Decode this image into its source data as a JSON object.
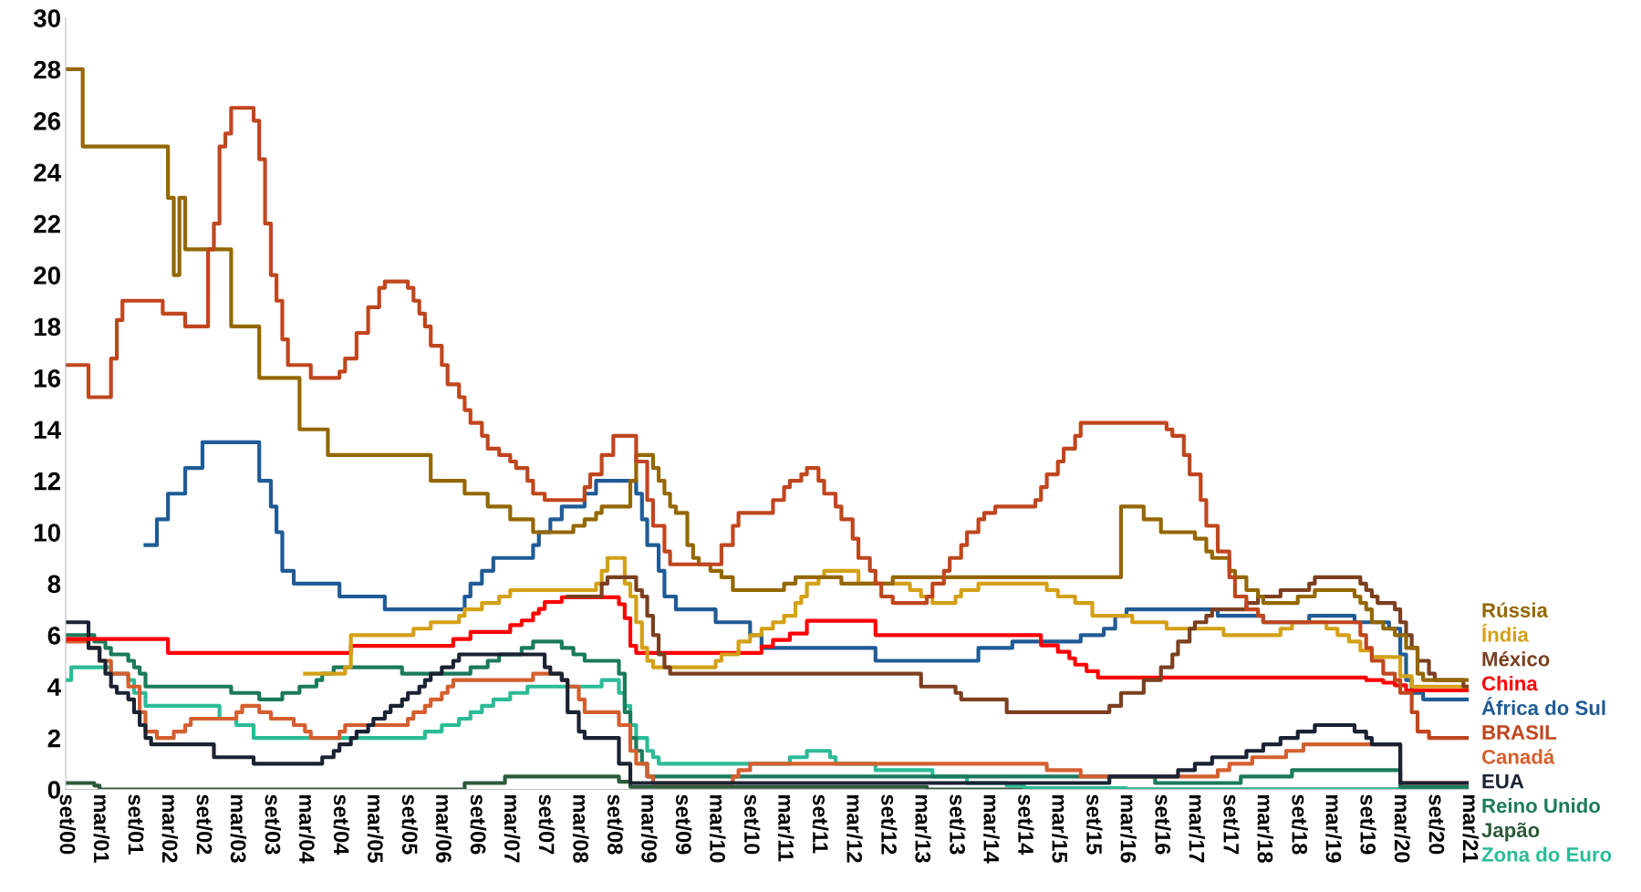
{
  "chart_data": {
    "type": "step",
    "xlim": [
      "2000-09",
      "2021-03"
    ],
    "ylim": [
      0,
      30
    ],
    "yticks": [
      0,
      2,
      4,
      6,
      8,
      10,
      12,
      14,
      16,
      18,
      20,
      22,
      24,
      26,
      28,
      30
    ],
    "xticks": [
      {
        "value": "2000-09",
        "label": "set/00"
      },
      {
        "value": "2001-03",
        "label": "mar/01"
      },
      {
        "value": "2001-09",
        "label": "set/01"
      },
      {
        "value": "2002-03",
        "label": "mar/02"
      },
      {
        "value": "2002-09",
        "label": "set/02"
      },
      {
        "value": "2003-03",
        "label": "mar/03"
      },
      {
        "value": "2003-09",
        "label": "set/03"
      },
      {
        "value": "2004-03",
        "label": "mar/04"
      },
      {
        "value": "2004-09",
        "label": "set/04"
      },
      {
        "value": "2005-03",
        "label": "mar/05"
      },
      {
        "value": "2005-09",
        "label": "set/05"
      },
      {
        "value": "2006-03",
        "label": "mar/06"
      },
      {
        "value": "2006-09",
        "label": "set/06"
      },
      {
        "value": "2007-03",
        "label": "mar/07"
      },
      {
        "value": "2007-09",
        "label": "set/07"
      },
      {
        "value": "2008-03",
        "label": "mar/08"
      },
      {
        "value": "2008-09",
        "label": "set/08"
      },
      {
        "value": "2009-03",
        "label": "mar/09"
      },
      {
        "value": "2009-09",
        "label": "set/09"
      },
      {
        "value": "2010-03",
        "label": "mar/10"
      },
      {
        "value": "2010-09",
        "label": "set/10"
      },
      {
        "value": "2011-03",
        "label": "mar/11"
      },
      {
        "value": "2011-09",
        "label": "set/11"
      },
      {
        "value": "2012-03",
        "label": "mar/12"
      },
      {
        "value": "2012-09",
        "label": "set/12"
      },
      {
        "value": "2013-03",
        "label": "mar/13"
      },
      {
        "value": "2013-09",
        "label": "set/13"
      },
      {
        "value": "2014-03",
        "label": "mar/14"
      },
      {
        "value": "2014-09",
        "label": "set/14"
      },
      {
        "value": "2015-03",
        "label": "mar/15"
      },
      {
        "value": "2015-09",
        "label": "set/15"
      },
      {
        "value": "2016-03",
        "label": "mar/16"
      },
      {
        "value": "2016-09",
        "label": "set/16"
      },
      {
        "value": "2017-03",
        "label": "mar/17"
      },
      {
        "value": "2017-09",
        "label": "set/17"
      },
      {
        "value": "2018-03",
        "label": "mar/18"
      },
      {
        "value": "2018-09",
        "label": "set/18"
      },
      {
        "value": "2019-03",
        "label": "mar/19"
      },
      {
        "value": "2019-09",
        "label": "set/19"
      },
      {
        "value": "2020-03",
        "label": "mar/20"
      },
      {
        "value": "2020-09",
        "label": "set/20"
      },
      {
        "value": "2021-03",
        "label": "mar/21"
      }
    ],
    "series": [
      {
        "name": "Japão",
        "color": "#2d5a3a",
        "x": [
          "2000-09",
          "2001-02",
          "2001-03",
          "2006-07",
          "2007-02",
          "2008-10",
          "2008-12",
          "2013-04",
          "2021-03"
        ],
        "values": [
          0.25,
          0.15,
          0,
          0.25,
          0.5,
          0.3,
          0.1,
          0,
          0
        ]
      },
      {
        "name": "Zona do Euro",
        "color": "#2bbb97",
        "x": [
          "2000-09",
          "2000-10",
          "2001-05",
          "2001-08",
          "2001-09",
          "2001-11",
          "2002-12",
          "2003-03",
          "2003-06",
          "2005-12",
          "2006-03",
          "2006-06",
          "2006-08",
          "2006-10",
          "2006-12",
          "2007-03",
          "2007-06",
          "2008-07",
          "2008-10",
          "2008-11",
          "2008-12",
          "2009-01",
          "2009-03",
          "2009-04",
          "2009-05",
          "2011-04",
          "2011-07",
          "2011-11",
          "2011-12",
          "2012-07",
          "2013-05",
          "2013-11",
          "2014-06",
          "2014-09",
          "2016-03",
          "2021-03"
        ],
        "values": [
          4.25,
          4.75,
          4.5,
          4.25,
          3.75,
          3.25,
          2.75,
          2.5,
          2.0,
          2.25,
          2.5,
          2.75,
          3.0,
          3.25,
          3.5,
          3.75,
          4.0,
          4.25,
          3.75,
          3.25,
          2.5,
          2.0,
          1.5,
          1.25,
          1.0,
          1.25,
          1.5,
          1.25,
          1.0,
          0.75,
          0.5,
          0.25,
          0.15,
          0.05,
          0,
          0
        ]
      },
      {
        "name": "Reino Unido",
        "color": "#1b7a5c",
        "x": [
          "2000-09",
          "2001-02",
          "2001-04",
          "2001-05",
          "2001-08",
          "2001-09",
          "2001-10",
          "2001-11",
          "2003-02",
          "2003-07",
          "2003-11",
          "2004-02",
          "2004-05",
          "2004-06",
          "2004-08",
          "2005-08",
          "2006-08",
          "2006-11",
          "2007-01",
          "2007-05",
          "2007-07",
          "2007-12",
          "2008-02",
          "2008-04",
          "2008-10",
          "2008-11",
          "2008-12",
          "2009-01",
          "2009-02",
          "2009-03",
          "2016-08",
          "2017-11",
          "2018-08",
          "2020-03",
          "2021-03"
        ],
        "values": [
          6.0,
          5.75,
          5.5,
          5.25,
          5.0,
          4.75,
          4.5,
          4.0,
          3.75,
          3.5,
          3.75,
          4.0,
          4.25,
          4.5,
          4.75,
          4.5,
          4.75,
          5.0,
          5.25,
          5.5,
          5.75,
          5.5,
          5.25,
          5.0,
          4.5,
          3.0,
          2.0,
          1.5,
          1.0,
          0.5,
          0.25,
          0.5,
          0.75,
          0.1,
          0.1
        ]
      },
      {
        "name": "Canadá",
        "color": "#d45f2e",
        "x": [
          "2000-09",
          "2001-01",
          "2001-03",
          "2001-05",
          "2001-08",
          "2001-10",
          "2001-11",
          "2002-01",
          "2002-04",
          "2002-06",
          "2002-07",
          "2003-03",
          "2003-04",
          "2003-07",
          "2003-09",
          "2004-01",
          "2004-03",
          "2004-04",
          "2004-09",
          "2004-10",
          "2005-09",
          "2005-10",
          "2005-12",
          "2006-01",
          "2006-03",
          "2006-04",
          "2006-05",
          "2007-07",
          "2007-12",
          "2008-01",
          "2008-03",
          "2008-04",
          "2008-10",
          "2008-12",
          "2009-01",
          "2009-03",
          "2009-04",
          "2010-06",
          "2010-07",
          "2010-09",
          "2015-01",
          "2015-07",
          "2017-07",
          "2017-09",
          "2018-01",
          "2018-07",
          "2018-10",
          "2020-03",
          "2021-03"
        ],
        "values": [
          5.75,
          5.5,
          5.0,
          4.5,
          4.0,
          3.0,
          2.25,
          2.0,
          2.25,
          2.5,
          2.75,
          3.0,
          3.25,
          3.0,
          2.75,
          2.5,
          2.25,
          2.0,
          2.25,
          2.5,
          2.75,
          3.0,
          3.25,
          3.5,
          3.75,
          4.0,
          4.25,
          4.5,
          4.25,
          4.0,
          3.5,
          3.0,
          2.5,
          1.5,
          1.0,
          0.5,
          0.25,
          0.5,
          0.75,
          1.0,
          0.75,
          0.5,
          0.75,
          1.0,
          1.25,
          1.5,
          1.75,
          0.25,
          0.25
        ]
      },
      {
        "name": "EUA",
        "color": "#1a2233",
        "x": [
          "2000-09",
          "2001-01",
          "2001-03",
          "2001-04",
          "2001-05",
          "2001-06",
          "2001-08",
          "2001-09",
          "2001-10",
          "2001-11",
          "2001-12",
          "2002-11",
          "2003-06",
          "2004-06",
          "2004-08",
          "2004-09",
          "2004-11",
          "2004-12",
          "2005-02",
          "2005-03",
          "2005-05",
          "2005-06",
          "2005-08",
          "2005-09",
          "2005-11",
          "2005-12",
          "2006-01",
          "2006-03",
          "2006-05",
          "2006-06",
          "2007-09",
          "2007-10",
          "2007-12",
          "2008-01",
          "2008-03",
          "2008-04",
          "2008-10",
          "2008-12",
          "2015-12",
          "2016-12",
          "2017-03",
          "2017-06",
          "2017-12",
          "2018-03",
          "2018-06",
          "2018-09",
          "2018-12",
          "2019-07",
          "2019-09",
          "2019-10",
          "2020-03",
          "2021-03"
        ],
        "values": [
          6.5,
          5.5,
          5.0,
          4.5,
          4.0,
          3.75,
          3.5,
          3.0,
          2.5,
          2.0,
          1.75,
          1.25,
          1.0,
          1.25,
          1.5,
          1.75,
          2.0,
          2.25,
          2.5,
          2.75,
          3.0,
          3.25,
          3.5,
          3.75,
          4.0,
          4.25,
          4.5,
          4.75,
          5.0,
          5.25,
          4.75,
          4.5,
          4.25,
          3.0,
          2.25,
          2.0,
          1.0,
          0.25,
          0.5,
          0.75,
          1.0,
          1.25,
          1.5,
          1.75,
          2.0,
          2.25,
          2.5,
          2.25,
          2.0,
          1.75,
          0.25,
          0.25
        ]
      },
      {
        "name": "África do Sul",
        "color": "#1f5b96",
        "x": [
          "2001-11",
          "2002-01",
          "2002-03",
          "2002-06",
          "2002-09",
          "2003-07",
          "2003-09",
          "2003-10",
          "2003-11",
          "2004-01",
          "2004-09",
          "2005-05",
          "2006-07",
          "2006-08",
          "2006-10",
          "2006-12",
          "2007-07",
          "2007-08",
          "2007-10",
          "2007-12",
          "2008-04",
          "2008-06",
          "2009-01",
          "2009-02",
          "2009-03",
          "2009-05",
          "2009-06",
          "2009-08",
          "2010-03",
          "2010-09",
          "2010-11",
          "2012-07",
          "2014-01",
          "2014-07",
          "2015-07",
          "2015-11",
          "2016-01",
          "2016-03",
          "2017-07",
          "2018-03",
          "2018-11",
          "2019-07",
          "2020-01",
          "2020-03",
          "2020-04",
          "2020-05",
          "2020-07",
          "2021-03"
        ],
        "values": [
          9.5,
          10.5,
          11.5,
          12.5,
          13.5,
          12.0,
          11.0,
          10.0,
          8.5,
          8.0,
          7.5,
          7.0,
          7.5,
          8.0,
          8.5,
          9.0,
          9.5,
          10.0,
          10.5,
          11.0,
          11.5,
          12.0,
          11.5,
          10.5,
          9.5,
          8.5,
          7.5,
          7.0,
          6.5,
          6.0,
          5.5,
          5.0,
          5.5,
          5.75,
          6.0,
          6.25,
          6.75,
          7.0,
          6.75,
          6.5,
          6.75,
          6.5,
          6.25,
          5.25,
          4.25,
          3.75,
          3.5,
          3.5
        ]
      },
      {
        "name": "China",
        "color": "#ff0000",
        "x": [
          "2000-09",
          "2002-03",
          "2004-11",
          "2006-05",
          "2006-08",
          "2007-03",
          "2007-05",
          "2007-07",
          "2007-08",
          "2007-09",
          "2007-12",
          "2008-10",
          "2008-11",
          "2008-12",
          "2009-01",
          "2010-11",
          "2011-01",
          "2011-04",
          "2011-07",
          "2012-07",
          "2014-12",
          "2015-03",
          "2015-05",
          "2015-06",
          "2015-08",
          "2015-10",
          "2019-09",
          "2019-12",
          "2020-02",
          "2020-04",
          "2021-03"
        ],
        "values": [
          5.85,
          5.31,
          5.58,
          5.85,
          6.12,
          6.39,
          6.57,
          6.84,
          7.02,
          7.29,
          7.47,
          7.2,
          6.66,
          5.58,
          5.31,
          5.56,
          5.81,
          6.06,
          6.56,
          6.0,
          5.6,
          5.35,
          5.1,
          4.85,
          4.6,
          4.35,
          4.25,
          4.15,
          4.05,
          3.85,
          3.85
        ]
      },
      {
        "name": "Índia",
        "color": "#d4a017",
        "x": [
          "2004-03",
          "2004-10",
          "2004-11",
          "2005-10",
          "2006-01",
          "2006-06",
          "2006-07",
          "2006-10",
          "2007-01",
          "2007-03",
          "2008-06",
          "2008-07",
          "2008-08",
          "2008-11",
          "2008-12",
          "2009-01",
          "2009-02",
          "2009-03",
          "2009-04",
          "2010-03",
          "2010-04",
          "2010-07",
          "2010-09",
          "2010-11",
          "2011-01",
          "2011-03",
          "2011-05",
          "2011-06",
          "2011-07",
          "2011-09",
          "2011-10",
          "2012-04",
          "2013-01",
          "2013-03",
          "2013-05",
          "2013-09",
          "2013-10",
          "2014-01",
          "2015-01",
          "2015-03",
          "2015-06",
          "2015-09",
          "2016-04",
          "2016-10",
          "2017-08",
          "2018-06",
          "2018-08",
          "2019-02",
          "2019-04",
          "2019-06",
          "2019-08",
          "2019-10",
          "2020-03",
          "2020-05",
          "2021-03"
        ],
        "values": [
          4.5,
          4.75,
          6.0,
          6.25,
          6.5,
          6.75,
          7.0,
          7.25,
          7.5,
          7.75,
          8.0,
          8.5,
          9.0,
          8.0,
          7.5,
          6.5,
          5.5,
          5.0,
          4.75,
          5.0,
          5.25,
          5.75,
          6.0,
          6.25,
          6.5,
          6.75,
          7.25,
          7.5,
          8.0,
          8.25,
          8.5,
          8.0,
          7.75,
          7.5,
          7.25,
          7.5,
          7.75,
          8.0,
          7.75,
          7.5,
          7.25,
          6.75,
          6.5,
          6.25,
          6.0,
          6.25,
          6.5,
          6.25,
          6.0,
          5.75,
          5.4,
          5.15,
          4.4,
          4.0,
          4.0
        ]
      },
      {
        "name": "México",
        "color": "#7b3f1f",
        "x": [
          "2008-01",
          "2008-07",
          "2008-08",
          "2009-01",
          "2009-02",
          "2009-03",
          "2009-04",
          "2009-05",
          "2009-06",
          "2009-07",
          "2013-03",
          "2013-09",
          "2013-10",
          "2014-06",
          "2015-12",
          "2016-02",
          "2016-06",
          "2016-09",
          "2016-11",
          "2016-12",
          "2017-02",
          "2017-03",
          "2017-05",
          "2017-06",
          "2017-12",
          "2018-02",
          "2018-06",
          "2018-11",
          "2018-12",
          "2019-08",
          "2019-09",
          "2019-10",
          "2019-11",
          "2020-02",
          "2020-03",
          "2020-04",
          "2020-05",
          "2020-06",
          "2020-08",
          "2020-09",
          "2021-02",
          "2021-03"
        ],
        "values": [
          7.5,
          8.0,
          8.25,
          7.75,
          7.5,
          6.75,
          6.0,
          5.25,
          4.75,
          4.5,
          4.0,
          3.75,
          3.5,
          3.0,
          3.25,
          3.75,
          4.25,
          4.75,
          5.25,
          5.75,
          6.25,
          6.5,
          6.75,
          7.0,
          7.25,
          7.5,
          7.75,
          8.0,
          8.25,
          8.0,
          7.75,
          7.5,
          7.25,
          7.0,
          6.5,
          6.0,
          5.5,
          5.0,
          4.5,
          4.25,
          4.0,
          4.0
        ]
      },
      {
        "name": "Rússia",
        "color": "#946700",
        "x": [
          "2000-09",
          "2000-12",
          "2002-03",
          "2002-04",
          "2002-05",
          "2002-06",
          "2003-02",
          "2003-07",
          "2004-02",
          "2004-07",
          "2006-01",
          "2006-07",
          "2006-11",
          "2007-03",
          "2007-07",
          "2008-02",
          "2008-04",
          "2008-06",
          "2008-07",
          "2008-12",
          "2009-01",
          "2009-04",
          "2009-05",
          "2009-06",
          "2009-07",
          "2009-08",
          "2009-10",
          "2009-11",
          "2009-12",
          "2010-02",
          "2010-04",
          "2010-06",
          "2011-03",
          "2011-05",
          "2012-01",
          "2012-10",
          "2016-02",
          "2016-06",
          "2016-09",
          "2017-03",
          "2017-05",
          "2017-06",
          "2017-09",
          "2017-10",
          "2017-12",
          "2018-02",
          "2018-03",
          "2018-09",
          "2018-12",
          "2019-07",
          "2019-08",
          "2019-09",
          "2019-10",
          "2019-12",
          "2020-02",
          "2020-04",
          "2020-06",
          "2020-07",
          "2021-03"
        ],
        "values": [
          28,
          25,
          23,
          20,
          23,
          21,
          18,
          16,
          14,
          13,
          12,
          11.5,
          11,
          10.5,
          10,
          10.25,
          10.5,
          10.75,
          11,
          12,
          13,
          12.5,
          12,
          11.5,
          11,
          10.75,
          9.5,
          9,
          8.75,
          8.5,
          8.25,
          7.75,
          8,
          8.25,
          8,
          8.25,
          11,
          10.5,
          10,
          9.75,
          9.25,
          9,
          8.5,
          8.25,
          7.75,
          7.5,
          7.25,
          7.5,
          7.75,
          7.5,
          7.25,
          7,
          6.5,
          6.25,
          6,
          5.5,
          4.5,
          4.25,
          4.25
        ]
      },
      {
        "name": "BRASIL",
        "color": "#c0461e",
        "x": [
          "2000-09",
          "2001-01",
          "2001-05",
          "2001-06",
          "2001-07",
          "2002-02",
          "2002-06",
          "2002-10",
          "2002-11",
          "2002-12",
          "2003-01",
          "2003-02",
          "2003-06",
          "2003-07",
          "2003-08",
          "2003-09",
          "2003-10",
          "2003-11",
          "2003-12",
          "2004-04",
          "2004-09",
          "2004-10",
          "2004-12",
          "2005-02",
          "2005-04",
          "2005-05",
          "2005-09",
          "2005-10",
          "2005-11",
          "2005-12",
          "2006-01",
          "2006-03",
          "2006-04",
          "2006-06",
          "2006-07",
          "2006-08",
          "2006-10",
          "2006-11",
          "2007-01",
          "2007-03",
          "2007-04",
          "2007-06",
          "2007-07",
          "2007-09",
          "2008-04",
          "2008-05",
          "2008-07",
          "2008-09",
          "2009-01",
          "2009-03",
          "2009-04",
          "2009-06",
          "2009-07",
          "2010-04",
          "2010-06",
          "2010-07",
          "2011-01",
          "2011-03",
          "2011-04",
          "2011-06",
          "2011-07",
          "2011-09",
          "2011-10",
          "2011-12",
          "2012-01",
          "2012-03",
          "2012-04",
          "2012-06",
          "2012-07",
          "2012-08",
          "2012-10",
          "2013-04",
          "2013-05",
          "2013-07",
          "2013-08",
          "2013-10",
          "2013-11",
          "2014-01",
          "2014-02",
          "2014-04",
          "2014-11",
          "2014-12",
          "2015-01",
          "2015-03",
          "2015-04",
          "2015-06",
          "2015-07",
          "2016-10",
          "2016-11",
          "2017-01",
          "2017-02",
          "2017-04",
          "2017-05",
          "2017-07",
          "2017-09",
          "2017-10",
          "2017-12",
          "2018-02",
          "2018-03",
          "2019-08",
          "2019-09",
          "2019-10",
          "2019-12",
          "2020-02",
          "2020-03",
          "2020-05",
          "2020-06",
          "2020-08",
          "2021-03"
        ],
        "values": [
          16.5,
          15.25,
          16.75,
          18.25,
          19,
          18.5,
          18,
          21,
          22,
          25,
          25.5,
          26.5,
          26,
          24.5,
          22,
          20,
          19,
          17.5,
          16.5,
          16,
          16.25,
          16.75,
          17.75,
          18.75,
          19.5,
          19.75,
          19.5,
          19,
          18.5,
          18,
          17.25,
          16.5,
          15.75,
          15.25,
          14.75,
          14.25,
          13.75,
          13.25,
          13,
          12.75,
          12.5,
          12,
          11.5,
          11.25,
          11.75,
          12.25,
          13,
          13.75,
          12.75,
          11.25,
          10.25,
          9.25,
          8.75,
          9.5,
          10.25,
          10.75,
          11.25,
          11.75,
          12,
          12.25,
          12.5,
          12,
          11.5,
          11,
          10.5,
          9.75,
          9,
          8.5,
          8,
          7.5,
          7.25,
          7.5,
          8,
          8.5,
          9,
          9.5,
          10,
          10.5,
          10.75,
          11,
          11.25,
          11.75,
          12.25,
          12.75,
          13.25,
          13.75,
          14.25,
          14,
          13.75,
          13,
          12.25,
          11.25,
          10.25,
          9.25,
          8.25,
          7.5,
          7,
          6.75,
          6.5,
          6,
          5.5,
          5,
          4.5,
          4.25,
          3.75,
          3,
          2.25,
          2,
          2
        ]
      }
    ]
  }
}
